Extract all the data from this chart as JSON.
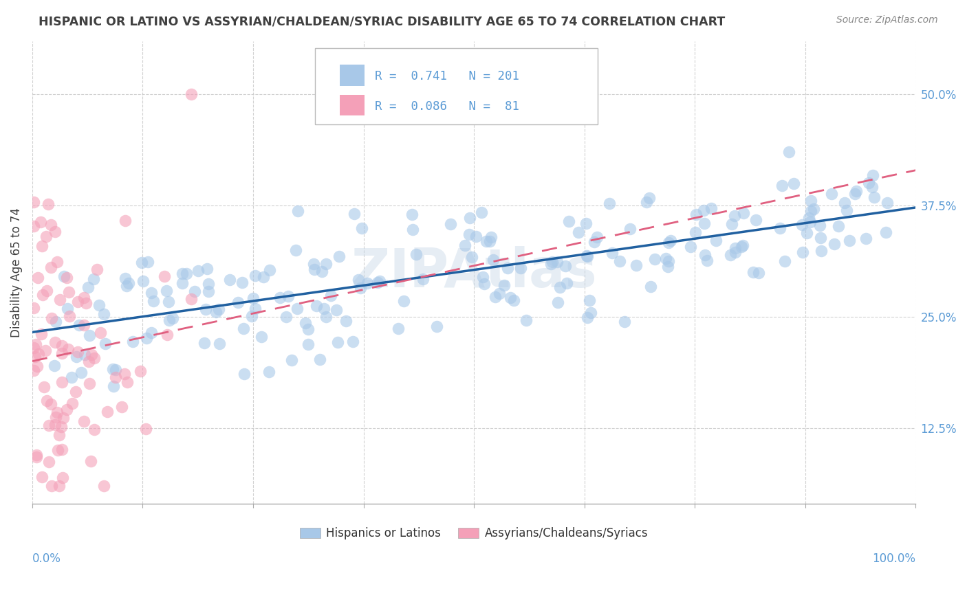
{
  "title": "HISPANIC OR LATINO VS ASSYRIAN/CHALDEAN/SYRIAC DISABILITY AGE 65 TO 74 CORRELATION CHART",
  "source": "Source: ZipAtlas.com",
  "ylabel": "Disability Age 65 to 74",
  "r_blue": 0.741,
  "n_blue": 201,
  "r_pink": 0.086,
  "n_pink": 81,
  "blue_color": "#a8c8e8",
  "pink_color": "#f4a0b8",
  "blue_line_color": "#2060a0",
  "pink_line_color": "#e06080",
  "xmin": 0.0,
  "xmax": 1.0,
  "ymin": 0.04,
  "ymax": 0.56,
  "yticks": [
    0.125,
    0.25,
    0.375,
    0.5
  ],
  "ytick_labels": [
    "12.5%",
    "25.0%",
    "37.5%",
    "50.0%"
  ],
  "xticks": [
    0.0,
    0.125,
    0.25,
    0.375,
    0.5,
    0.625,
    0.75,
    0.875,
    1.0
  ],
  "xtick_labels": [
    "",
    "",
    "",
    "",
    "",
    "",
    "",
    "",
    ""
  ],
  "x_edge_labels": [
    "0.0%",
    "100.0%"
  ],
  "watermark": "ZIPAtlas",
  "legend_label_blue": "Hispanics or Latinos",
  "legend_label_pink": "Assyrians/Chaldeans/Syriacs",
  "background_color": "#ffffff",
  "grid_color": "#cccccc",
  "tick_color": "#5b9bd5",
  "title_color": "#404040",
  "source_color": "#888888"
}
